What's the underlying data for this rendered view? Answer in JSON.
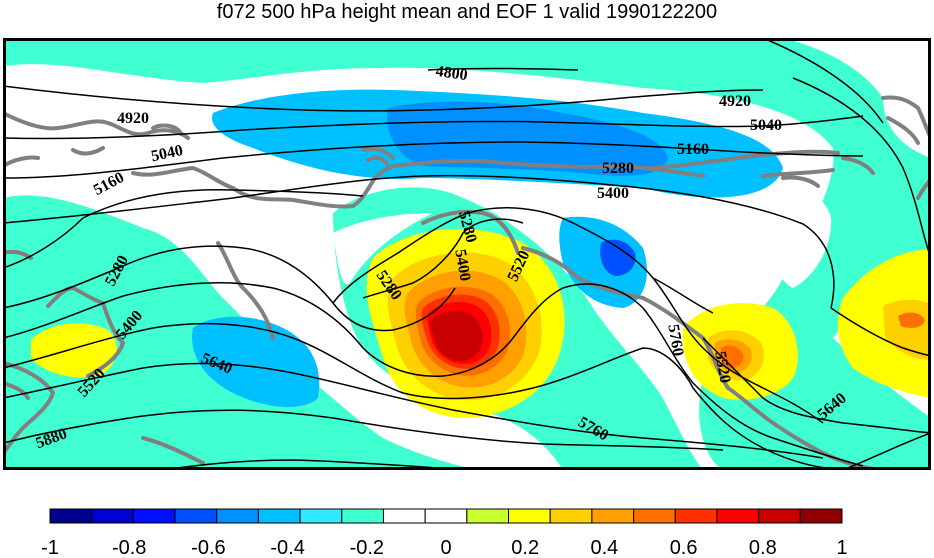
{
  "title": "f072 500 hPa height mean and EOF 1 valid 1990122200",
  "contour_labels": [
    "4800",
    "4920",
    "4920",
    "5040",
    "5040",
    "5160",
    "5160",
    "5280",
    "5280",
    "5280",
    "5280",
    "5400",
    "5400",
    "5400",
    "5520",
    "5520",
    "5520",
    "5640",
    "5640",
    "5760",
    "5760",
    "5880"
  ],
  "colorbar": {
    "colors": [
      "#00008f",
      "#0000cf",
      "#0010ff",
      "#0050ff",
      "#0090ff",
      "#00c0ff",
      "#30e8ff",
      "#40ffd0",
      "#ffffff",
      "#ffffff",
      "#c8ff30",
      "#ffff00",
      "#ffd000",
      "#ff9f00",
      "#ff6f00",
      "#ff3000",
      "#ff0000",
      "#c80000",
      "#8f0000"
    ],
    "tick_labels": [
      "-1",
      "-0.8",
      "-0.6",
      "-0.4",
      "-0.2",
      "0",
      "0.2",
      "0.4",
      "0.6",
      "0.8",
      "1"
    ]
  },
  "fill_colors": {
    "cyan": "#40ffd0",
    "light_blue": "#00c0ff",
    "blue": "#0090ff",
    "mid_blue": "#0050ff",
    "yellow": "#ffff00",
    "gold": "#ffd000",
    "orange": "#ff9f00",
    "dark_orange": "#ff6f00",
    "red_orange": "#ff3000",
    "red": "#ff0000",
    "dark_red": "#c80000",
    "coast": "#808080"
  }
}
